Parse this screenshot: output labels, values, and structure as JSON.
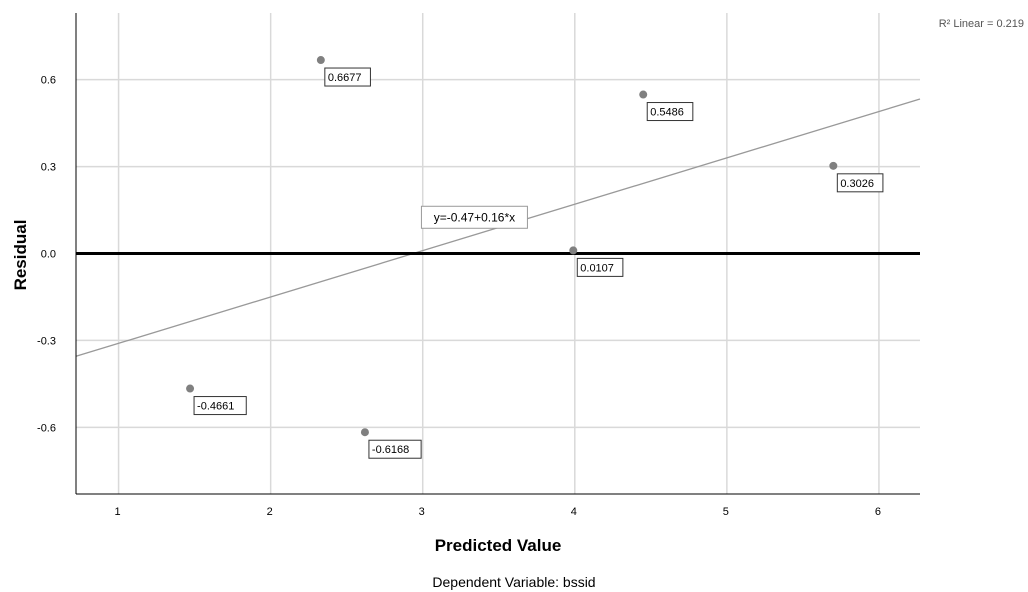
{
  "chart_data": {
    "type": "scatter",
    "xlabel": "Predicted Value",
    "ylabel": "Residual",
    "footnote": "Dependent Variable: bssid",
    "xlim": [
      0.72,
      6.27
    ],
    "ylim": [
      -0.83,
      0.83
    ],
    "xticks": [
      1,
      2,
      3,
      4,
      5,
      6
    ],
    "yticks": [
      -0.6,
      -0.3,
      0.0,
      0.3,
      0.6
    ],
    "ytick_labels": [
      "-0.6",
      "-0.3",
      "0.0",
      "0.3",
      "0.6"
    ],
    "grid": true,
    "points": [
      {
        "x": 1.47,
        "y": -0.4661,
        "label": "-0.4661"
      },
      {
        "x": 2.33,
        "y": 0.6677,
        "label": "0.6677"
      },
      {
        "x": 2.62,
        "y": -0.6168,
        "label": "-0.6168"
      },
      {
        "x": 3.99,
        "y": 0.0107,
        "label": "0.0107"
      },
      {
        "x": 4.45,
        "y": 0.5486,
        "label": "0.5486"
      },
      {
        "x": 5.7,
        "y": 0.3026,
        "label": "0.3026"
      }
    ],
    "reference_line_y": 0.0,
    "fit_line": {
      "intercept": -0.47,
      "slope": 0.16,
      "equation_label": "y=-0.47+0.16*x"
    },
    "r2_label": "R² Linear = 0.219",
    "colors": {
      "point": "#808080",
      "fit_line": "#999999",
      "grid": "#d9d9d9",
      "reference": "#000000"
    }
  }
}
